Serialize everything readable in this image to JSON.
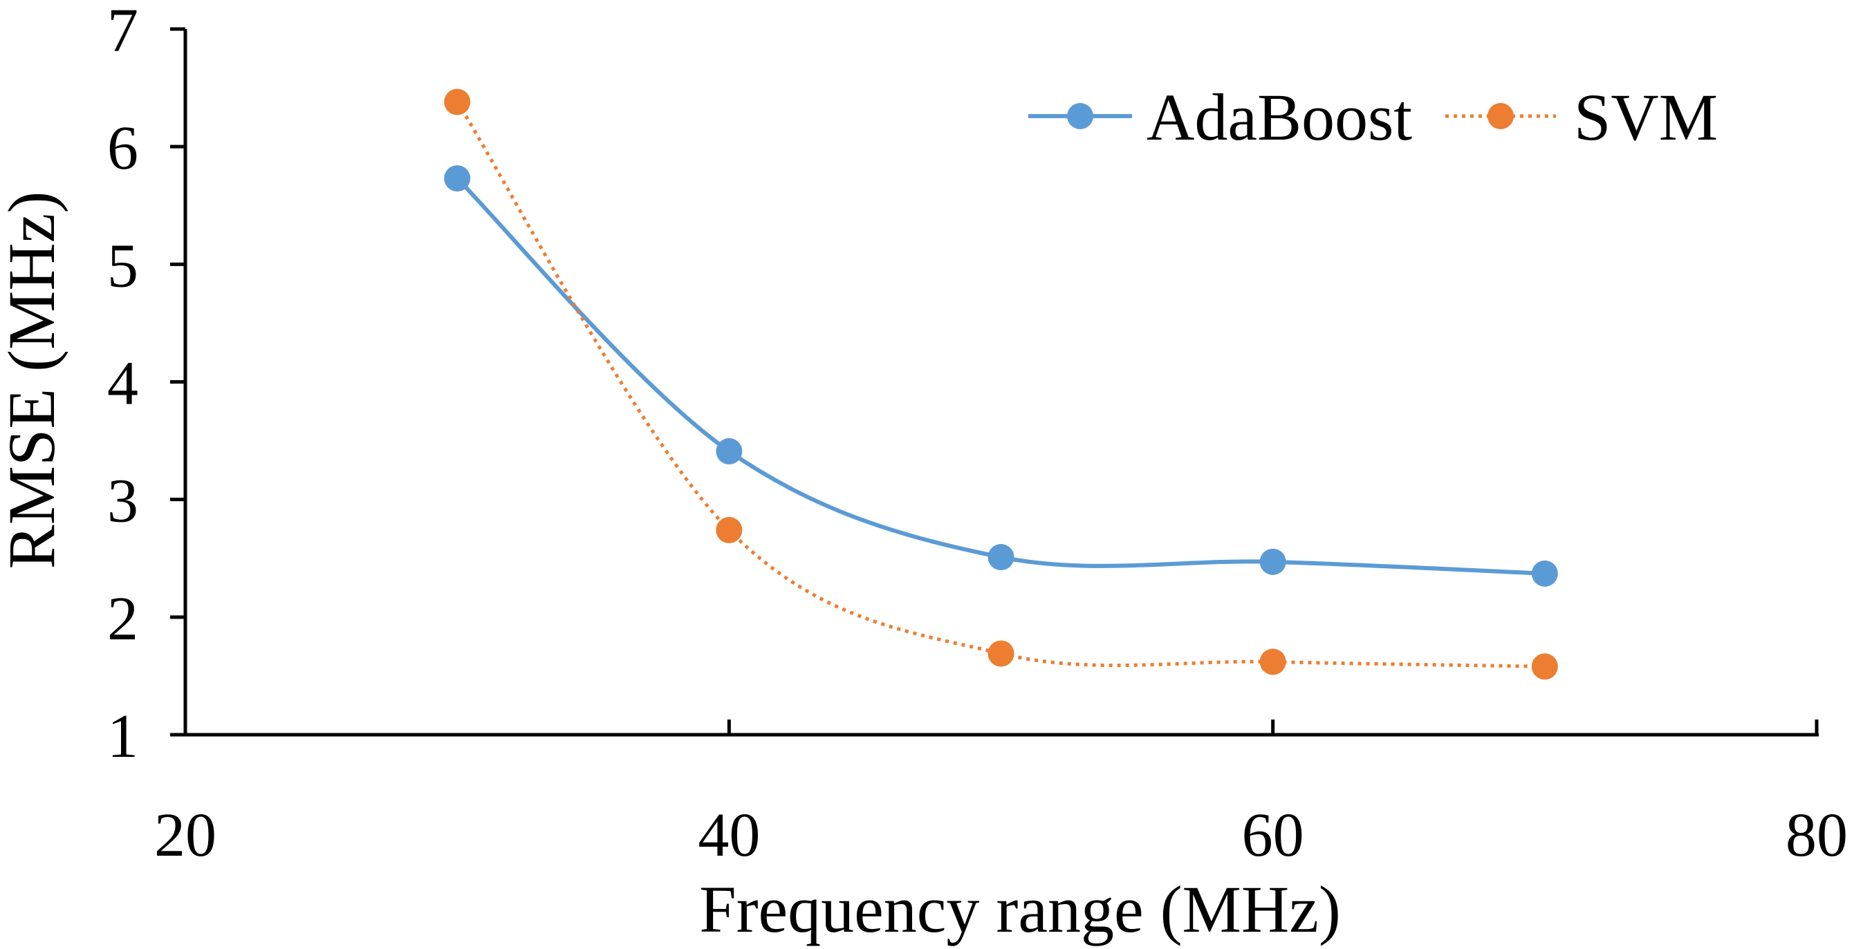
{
  "chart_data": {
    "type": "line",
    "title": "",
    "xlabel": "Frequency range (MHz)",
    "ylabel": "RMSE (MHz)",
    "xlim": [
      20,
      80
    ],
    "ylim": [
      1,
      7
    ],
    "xticks": [
      "20",
      "40",
      "60",
      "80"
    ],
    "yticks": [
      "1",
      "2",
      "3",
      "4",
      "5",
      "6",
      "7"
    ],
    "grid": false,
    "legend_position": "top-right",
    "series": [
      {
        "name": "AdaBoost",
        "color": "#5B9BD5",
        "line_style": "solid",
        "x": [
          30,
          40,
          50,
          60,
          70
        ],
        "y": [
          5.73,
          3.41,
          2.51,
          2.47,
          2.37
        ]
      },
      {
        "name": "SVM",
        "color": "#ED7D31",
        "line_style": "dotted",
        "x": [
          30,
          40,
          50,
          60,
          70
        ],
        "y": [
          6.38,
          2.74,
          1.69,
          1.62,
          1.58
        ]
      }
    ]
  }
}
